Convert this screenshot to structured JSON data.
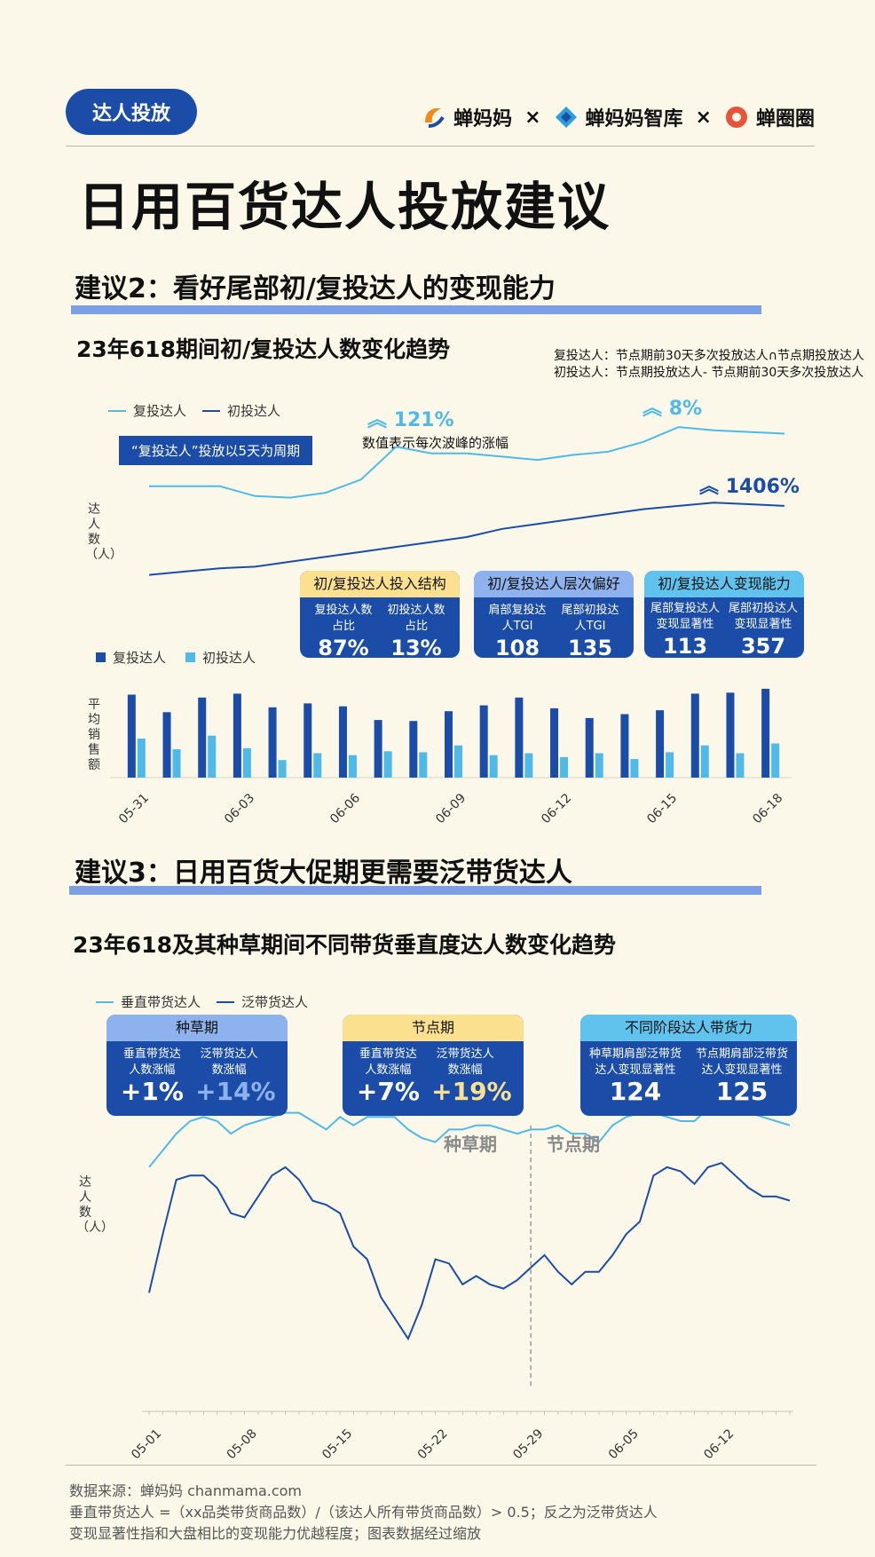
{
  "header": {
    "tag": "达人投放",
    "brand_chanmama": "蝉妈妈",
    "brand_zhiku": "蝉妈妈智库",
    "brand_chanquanquan": "蝉圈圈",
    "separator": "×",
    "title": "日用百货达人投放建议"
  },
  "section2": {
    "title": "建议2：看好尾部初/复投达人的变现能力",
    "chart_title": "23年618期间初/复投达人数变化趋势",
    "note_line1": "复投达人：节点期前30天多次投放达人∩节点期投放达人",
    "note_line2": "初投达人：节点期投放达人- 节点期前30天多次投放达人",
    "legend_repeat": "复投达人",
    "legend_first": "初投达人",
    "pill": "“复投达人”投放以5天为周期",
    "growth1": "121%",
    "growth2": "8%",
    "growth3": "1406%",
    "growth_caption": "数值表示每次波峰的涨幅",
    "ylabel_line": "达人数（人）",
    "ylabel_bar": "平均销售额",
    "card1": {
      "head": "初/复投达人投入结构",
      "l1": "复投达人数占比",
      "v1": "87%",
      "l2": "初投达人数占比",
      "v2": "13%"
    },
    "card2": {
      "head": "初/复投达人层次偏好",
      "l1": "肩部复投达人TGI",
      "v1": "108",
      "l2": "尾部初投达人TGI",
      "v2": "135"
    },
    "card3": {
      "head": "初/复投达人变现能力",
      "l1": "尾部复投达人变现显著性",
      "v1": "113",
      "l2": "尾部初投达人变现显著性",
      "v2": "357"
    }
  },
  "section3": {
    "title": "建议3：日用百货大促期更需要泛带货达人",
    "chart_title": "23年618及其种草期间不同带货垂直度达人数变化趋势",
    "legend_vertical": "垂直带货达人",
    "legend_general": "泛带货达人",
    "ylabel": "达人数（人）",
    "phase1": "种草期",
    "phase2": "节点期",
    "card1": {
      "head": "种草期",
      "l1": "垂直带货达人数涨幅",
      "v1": "+1%",
      "l2": "泛带货达人数涨幅",
      "v2": "+14%"
    },
    "card2": {
      "head": "节点期",
      "l1": "垂直带货达人数涨幅",
      "v1": "+7%",
      "l2": "泛带货达人数涨幅",
      "v2": "+19%"
    },
    "card3": {
      "head": "不同阶段达人带货力",
      "l1": "种草期肩部泛带货达人变现显著性",
      "v1": "124",
      "l2": "节点期肩部泛带货达人变现显著性",
      "v2": "125"
    }
  },
  "footer": {
    "line1": "数据来源：蝉妈妈 chanmama.com",
    "line2": "垂直带货达人 =（xx品类带货商品数）/（该达人所有带货商品数）> 0.5；反之为泛带货达人",
    "line3": "变现显著性指和大盘相比的变现能力优越程度；图表数据经过缩放"
  },
  "colors": {
    "dark_blue": "#1b4da8",
    "light_blue": "#4fb9e8",
    "bar_blue": "#7d9fe4",
    "yellow": "#fbe08f"
  },
  "chart_data": [
    {
      "type": "line",
      "title": "23年618期间初/复投达人数变化趋势",
      "ylabel": "达人数（人）",
      "x": [
        "05-31",
        "06-01",
        "06-02",
        "06-03",
        "06-04",
        "06-05",
        "06-06",
        "06-07",
        "06-08",
        "06-09",
        "06-10",
        "06-11",
        "06-12",
        "06-13",
        "06-14",
        "06-15",
        "06-16",
        "06-17",
        "06-18"
      ],
      "series": [
        {
          "name": "复投达人",
          "values": [
            58,
            58,
            58,
            52,
            51,
            54,
            62,
            82,
            78,
            78,
            76,
            74,
            77,
            79,
            85,
            94,
            92,
            91,
            90
          ]
        },
        {
          "name": "初投达人",
          "values": [
            4,
            6,
            8,
            9,
            12,
            15,
            18,
            21,
            24,
            27,
            32,
            35,
            38,
            41,
            44,
            46,
            48,
            47,
            46
          ]
        }
      ]
    },
    {
      "type": "bar",
      "ylabel": "平均销售额",
      "categories": [
        "05-31",
        "06-01",
        "06-02",
        "06-03",
        "06-04",
        "06-05",
        "06-06",
        "06-07",
        "06-08",
        "06-09",
        "06-10",
        "06-11",
        "06-12",
        "06-13",
        "06-14",
        "06-15",
        "06-16",
        "06-17",
        "06-18"
      ],
      "series": [
        {
          "name": "复投达人",
          "values": [
            85,
            67,
            82,
            86,
            72,
            76,
            73,
            59,
            58,
            68,
            74,
            82,
            71,
            61,
            65,
            69,
            86,
            87,
            91
          ]
        },
        {
          "name": "初投达人",
          "values": [
            40,
            29,
            43,
            30,
            18,
            25,
            23,
            27,
            26,
            33,
            23,
            25,
            21,
            25,
            19,
            26,
            33,
            25,
            35
          ]
        }
      ]
    },
    {
      "type": "line",
      "title": "23年618及其种草期间不同带货垂直度达人数变化趋势",
      "ylabel": "达人数（人）",
      "x": [
        "05-01",
        "05-02",
        "05-03",
        "05-04",
        "05-05",
        "05-06",
        "05-07",
        "05-08",
        "05-09",
        "05-10",
        "05-11",
        "05-12",
        "05-13",
        "05-14",
        "05-15",
        "05-16",
        "05-17",
        "05-18",
        "05-19",
        "05-20",
        "05-21",
        "05-22",
        "05-23",
        "05-24",
        "05-25",
        "05-26",
        "05-27",
        "05-28",
        "05-29",
        "05-30",
        "05-31",
        "06-01",
        "06-02",
        "06-03",
        "06-04",
        "06-05",
        "06-06",
        "06-07",
        "06-08",
        "06-09",
        "06-10",
        "06-11",
        "06-12",
        "06-13",
        "06-14",
        "06-15",
        "06-16",
        "06-17"
      ],
      "series": [
        {
          "name": "垂直带货达人",
          "values": [
            72,
            76,
            80,
            83,
            84,
            83,
            80,
            82,
            83,
            84,
            85,
            85,
            83,
            81,
            84,
            82,
            84,
            84,
            84,
            81,
            79,
            78,
            81,
            81,
            82,
            82,
            81,
            80,
            81,
            81,
            82,
            80,
            80,
            78,
            82,
            84,
            85,
            85,
            84,
            83,
            83,
            86,
            86,
            86,
            85,
            84,
            83,
            82
          ]
        },
        {
          "name": "泛带货达人",
          "values": [
            42,
            56,
            69,
            70,
            70,
            67,
            61,
            60,
            65,
            70,
            72,
            69,
            64,
            63,
            61,
            53,
            50,
            41,
            36,
            31,
            39,
            50,
            49,
            44,
            46,
            44,
            43,
            45,
            48,
            51,
            47,
            44,
            47,
            47,
            51,
            56,
            59,
            70,
            72,
            71,
            68,
            72,
            73,
            70,
            67,
            65,
            65,
            64
          ]
        }
      ],
      "annotations": [
        "种草期",
        "节点期"
      ]
    }
  ]
}
